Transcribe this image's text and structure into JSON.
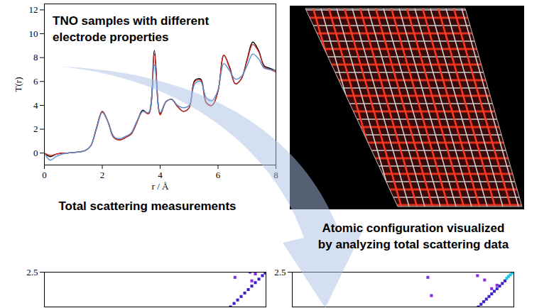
{
  "chart_data": [
    {
      "type": "line",
      "title": "TNO samples with different electrode properties",
      "x_label": "r / Å",
      "y_label": "T(r)",
      "annotations": [
        "Total scattering measurements"
      ],
      "xlim": [
        0,
        8
      ],
      "ylim": [
        -1,
        12.5
      ],
      "xticks": [
        0,
        2,
        4,
        6,
        8
      ],
      "yticks": [
        0,
        2,
        4,
        6,
        8,
        10,
        12
      ],
      "x": [
        0,
        0.2,
        0.4,
        0.6,
        0.8,
        1.0,
        1.2,
        1.4,
        1.6,
        1.8,
        2.0,
        2.2,
        2.4,
        2.6,
        2.8,
        3.0,
        3.2,
        3.4,
        3.6,
        3.8,
        4.0,
        4.2,
        4.4,
        4.6,
        4.8,
        5.0,
        5.2,
        5.4,
        5.6,
        5.8,
        6.0,
        6.2,
        6.4,
        6.6,
        6.8,
        7.0,
        7.2,
        7.4,
        7.6,
        7.8,
        8.0
      ],
      "series": [
        {
          "color": "#000000",
          "values": [
            0,
            -0.3,
            -0.1,
            0,
            0,
            0.05,
            0.1,
            0.2,
            0.6,
            2.1,
            3.5,
            2.6,
            1.3,
            1.1,
            1.3,
            1.6,
            2.6,
            3.6,
            3.3,
            8.6,
            3.3,
            4.3,
            4.5,
            3.9,
            3.5,
            3.8,
            6.1,
            6.2,
            4.2,
            4.0,
            5.2,
            8.2,
            7.2,
            5.8,
            6.2,
            7.8,
            9.3,
            8.6,
            7.3,
            7.1,
            6.9
          ]
        },
        {
          "color": "#d0302a",
          "values": [
            0,
            -0.2,
            -0.1,
            0,
            0,
            0.05,
            0.1,
            0.2,
            0.6,
            2.1,
            3.5,
            2.6,
            1.3,
            1.1,
            1.3,
            1.6,
            2.6,
            3.5,
            3.3,
            8.3,
            3.2,
            4.3,
            4.5,
            3.9,
            3.5,
            3.8,
            6.0,
            6.1,
            4.2,
            4.0,
            5.2,
            8.2,
            7.1,
            5.8,
            6.2,
            7.7,
            9.1,
            8.5,
            7.2,
            7.0,
            6.8
          ]
        },
        {
          "color": "#5a8ed0",
          "values": [
            0,
            -0.6,
            -0.3,
            -0.1,
            0,
            0.05,
            0.1,
            0.2,
            0.6,
            2.0,
            3.4,
            2.6,
            1.4,
            1.2,
            1.4,
            1.7,
            2.7,
            3.5,
            3.4,
            7.4,
            3.4,
            4.3,
            4.5,
            4.0,
            3.8,
            4.0,
            5.8,
            6.0,
            4.6,
            4.4,
            5.3,
            7.5,
            6.9,
            6.2,
            6.4,
            7.3,
            8.3,
            7.9,
            7.1,
            7.0,
            6.9
          ]
        }
      ]
    },
    {
      "type": "scatter",
      "xlim": [
        0,
        2.5
      ],
      "ylim": [
        2.1,
        2.5
      ],
      "yticks": [
        2.5
      ],
      "tick_labels": "y",
      "series": [
        {
          "color": "#3a22c8",
          "marker": "square",
          "x": [
            2.1,
            2.14,
            2.18,
            2.22,
            2.26,
            2.3,
            2.34,
            2.38,
            2.42,
            2.46,
            2.49
          ],
          "y": [
            2.1,
            2.14,
            2.18,
            2.22,
            2.26,
            2.3,
            2.34,
            2.38,
            2.42,
            2.46,
            2.49
          ]
        },
        {
          "color": "#8a2be2",
          "marker": "square",
          "x": [
            2.15,
            2.32,
            2.38,
            2.34
          ],
          "y": [
            2.44,
            2.5,
            2.48,
            2.4
          ]
        }
      ]
    },
    {
      "type": "scatter",
      "xlim": [
        0,
        2.5
      ],
      "ylim": [
        2.1,
        2.5
      ],
      "yticks": [
        2.5
      ],
      "tick_labels": "y",
      "series": [
        {
          "color": "#3a22c8",
          "marker": "square",
          "x": [
            2.1,
            2.13,
            2.16,
            2.19,
            2.22,
            2.25,
            2.28,
            2.31,
            2.34,
            2.37,
            2.4
          ],
          "y": [
            2.1,
            2.13,
            2.16,
            2.19,
            2.22,
            2.25,
            2.28,
            2.31,
            2.34,
            2.37,
            2.4
          ]
        },
        {
          "color": "#8a2be2",
          "marker": "square",
          "x": [
            1.53,
            1.57,
            2.09,
            2.17,
            2.25,
            2.31
          ],
          "y": [
            2.44,
            2.23,
            2.46,
            2.41,
            2.31,
            2.35
          ]
        },
        {
          "color": "#19c6e0",
          "marker": "square",
          "x": [
            2.42,
            2.44,
            2.46,
            2.48
          ],
          "y": [
            2.43,
            2.45,
            2.47,
            2.49
          ]
        }
      ]
    }
  ],
  "image": {
    "caption": [
      "Atomic configuration visualized",
      "by analyzing total scattering data"
    ]
  }
}
